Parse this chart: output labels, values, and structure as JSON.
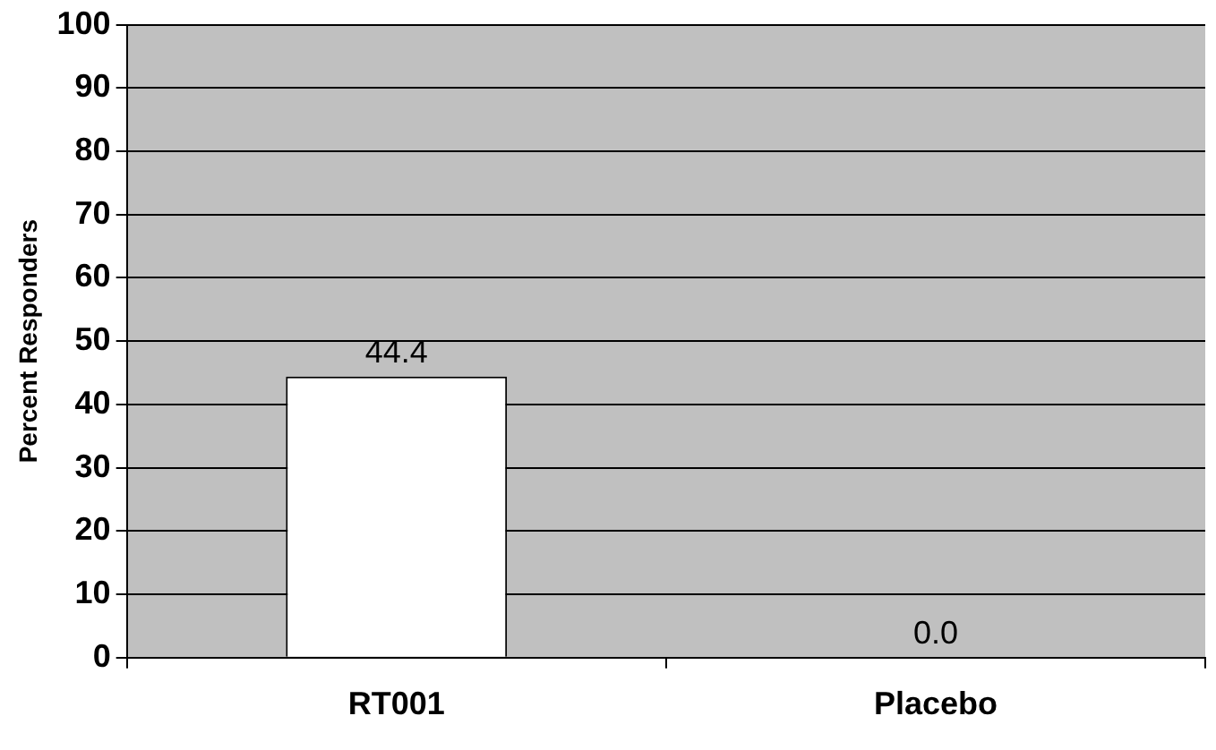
{
  "chart_data": {
    "type": "bar",
    "ylabel": "Percent Responders",
    "categories": [
      "RT001",
      "Placebo"
    ],
    "values": [
      44.4,
      0
    ],
    "value_labels": [
      "44.4",
      "0.0"
    ],
    "color": "#ffffff",
    "ylim": [
      0,
      100
    ],
    "yticks": [
      0,
      10,
      20,
      30,
      40,
      50,
      60,
      70,
      80,
      90,
      100
    ],
    "grid": "y",
    "legend": false
  }
}
